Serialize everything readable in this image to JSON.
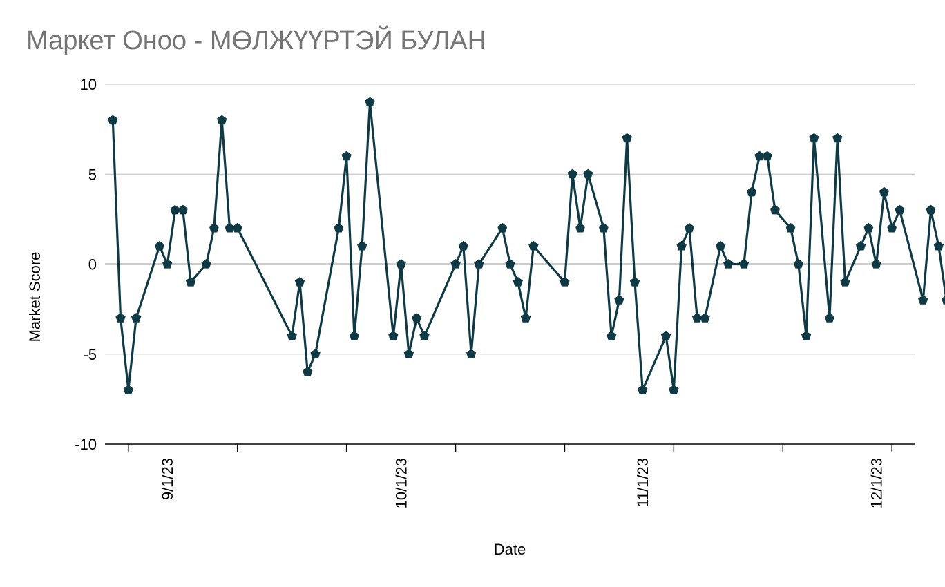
{
  "chart_data": {
    "type": "line",
    "title": "Маркет Оноо - МӨЛЖҮҮРТЭЙ БУЛАН",
    "xlabel": "Date",
    "ylabel": "Market Score",
    "ylim": [
      -10,
      10
    ],
    "yticks": [
      -10,
      -5,
      0,
      5,
      10
    ],
    "xticks": [
      {
        "label": "9/1/23",
        "date": "2023-09-01"
      },
      {
        "label": "10/1/23",
        "date": "2023-10-01"
      },
      {
        "label": "11/1/23",
        "date": "2023-11-01"
      },
      {
        "label": "12/1/23",
        "date": "2023-12-01"
      }
    ],
    "xlim": [
      "2023-08-24",
      "2023-12-06"
    ],
    "grid": true,
    "legend": "none",
    "colors": {
      "line": "#0f3a45",
      "grid": "#c8c8c8",
      "zero": "#333333"
    },
    "series": [
      {
        "x": [
          "2023-08-25",
          "2023-08-26",
          "2023-08-27",
          "2023-08-28",
          "2023-08-31",
          "2023-09-01",
          "2023-09-02",
          "2023-09-03",
          "2023-09-04",
          "2023-09-06",
          "2023-09-07",
          "2023-09-08",
          "2023-09-09",
          "2023-09-10",
          "2023-09-17",
          "2023-09-18",
          "2023-09-19",
          "2023-09-20",
          "2023-09-23",
          "2023-09-24",
          "2023-09-25",
          "2023-09-26",
          "2023-09-27",
          "2023-09-30",
          "2023-10-01",
          "2023-10-02",
          "2023-10-03",
          "2023-10-04",
          "2023-10-08",
          "2023-10-09",
          "2023-10-10",
          "2023-10-11",
          "2023-10-14",
          "2023-10-15",
          "2023-10-16",
          "2023-10-17",
          "2023-10-18",
          "2023-10-22",
          "2023-10-23",
          "2023-10-24",
          "2023-10-25",
          "2023-10-27",
          "2023-10-28",
          "2023-10-29",
          "2023-10-30",
          "2023-10-31",
          "2023-11-01",
          "2023-11-04",
          "2023-11-05",
          "2023-11-06",
          "2023-11-07",
          "2023-11-08",
          "2023-11-09",
          "2023-11-11",
          "2023-11-12",
          "2023-11-14",
          "2023-11-15",
          "2023-11-16",
          "2023-11-17",
          "2023-11-18",
          "2023-11-20",
          "2023-11-21",
          "2023-11-22",
          "2023-11-23",
          "2023-11-25",
          "2023-11-26",
          "2023-11-27",
          "2023-11-29",
          "2023-11-30",
          "2023-12-01",
          "2023-12-02",
          "2023-12-03",
          "2023-12-04",
          "2023-12-07",
          "2023-12-08",
          "2023-12-09",
          "2023-12-10"
        ],
        "y": [
          8,
          -3,
          -7,
          -3,
          1,
          0,
          3,
          3,
          -1,
          0,
          2,
          8,
          2,
          2,
          -4,
          -1,
          -6,
          -5,
          2,
          6,
          -4,
          1,
          9,
          -4,
          0,
          -5,
          -3,
          -4,
          0,
          1,
          -5,
          0,
          2,
          0,
          -1,
          -3,
          1,
          -1,
          5,
          2,
          5,
          2,
          -4,
          -2,
          7,
          -1,
          -7,
          -4,
          -7,
          1,
          2,
          -3,
          -3,
          1,
          0,
          0,
          4,
          6,
          6,
          3,
          2,
          0,
          -4,
          7,
          -3,
          7,
          -1,
          1,
          2,
          0,
          4,
          2,
          3,
          -2,
          3,
          1,
          -2
        ]
      }
    ]
  }
}
